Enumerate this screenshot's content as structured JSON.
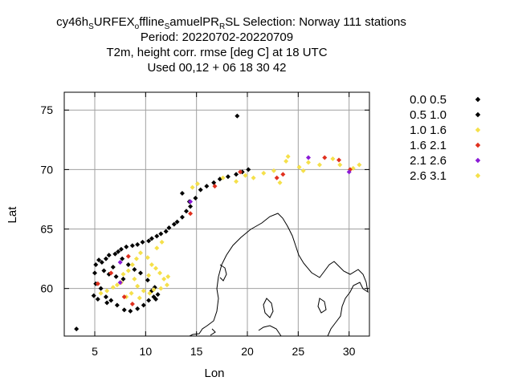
{
  "chart_data": {
    "type": "scatter",
    "title": {
      "line1": {
        "p1": "cy46h",
        "s1": "S",
        "p2": "URFEX",
        "s2": "o",
        "p3": "ffline",
        "s3": "S",
        "p4": "amuelPR",
        "s4": "R",
        "p5": "SL   Selection: Norway    111 stations"
      },
      "line2": "Period: 20220702-20220709",
      "line3": "T2m, height corr. rmse [deg C] at  18 UTC",
      "line4": "Used  00,12  + 06 18 30 42"
    },
    "xlabel": "Lon",
    "ylabel": "Lat",
    "xlim": [
      2,
      32
    ],
    "ylim": [
      56,
      76.5
    ],
    "xticks": [
      "5",
      "10",
      "15",
      "20",
      "25",
      "30"
    ],
    "yticks": [
      "60",
      "65",
      "70",
      "75"
    ],
    "grid": true,
    "legend": [
      {
        "label": "0.0 0.5",
        "color": "#000000"
      },
      {
        "label": "0.5 1.0",
        "color": "#000000"
      },
      {
        "label": "1.0 1.6",
        "color": "#f5e04a"
      },
      {
        "label": "1.6 2.1",
        "color": "#e0301e"
      },
      {
        "label": "2.1 2.6",
        "color": "#8a1ad6"
      },
      {
        "label": "2.6 3.1",
        "color": "#f5e04a"
      }
    ],
    "series": [
      {
        "name": "0.0-1.0",
        "color": "#000000",
        "points": [
          [
            3.2,
            56.6
          ],
          [
            4.9,
            59.4
          ],
          [
            5.3,
            59.1
          ],
          [
            5.1,
            60.4
          ],
          [
            5.0,
            61.3
          ],
          [
            5.1,
            62.0
          ],
          [
            5.4,
            62.4
          ],
          [
            5.7,
            62.2
          ],
          [
            6.1,
            62.5
          ],
          [
            6.4,
            62.8
          ],
          [
            7.0,
            62.9
          ],
          [
            7.3,
            63.1
          ],
          [
            7.6,
            63.3
          ],
          [
            8.1,
            63.5
          ],
          [
            8.7,
            63.6
          ],
          [
            9.2,
            63.7
          ],
          [
            9.7,
            63.9
          ],
          [
            10.3,
            64.0
          ],
          [
            10.6,
            64.2
          ],
          [
            11.1,
            64.4
          ],
          [
            11.5,
            64.6
          ],
          [
            12.0,
            64.8
          ],
          [
            12.3,
            65.1
          ],
          [
            12.8,
            65.4
          ],
          [
            13.1,
            65.6
          ],
          [
            13.6,
            66.0
          ],
          [
            14.0,
            66.5
          ],
          [
            14.4,
            66.9
          ],
          [
            14.3,
            67.3
          ],
          [
            14.9,
            67.6
          ],
          [
            13.6,
            68.0
          ],
          [
            15.4,
            68.3
          ],
          [
            16.0,
            68.6
          ],
          [
            16.7,
            68.9
          ],
          [
            17.3,
            69.2
          ],
          [
            18.1,
            69.4
          ],
          [
            18.9,
            69.6
          ],
          [
            19.5,
            69.8
          ],
          [
            20.1,
            70.0
          ],
          [
            19.0,
            74.5
          ],
          [
            5.9,
            61.5
          ],
          [
            6.4,
            61.2
          ],
          [
            7.1,
            61.0
          ],
          [
            7.8,
            60.8
          ],
          [
            6.1,
            59.3
          ],
          [
            6.6,
            59.0
          ],
          [
            7.2,
            58.6
          ],
          [
            7.9,
            58.2
          ],
          [
            8.5,
            58.1
          ],
          [
            9.2,
            58.3
          ],
          [
            9.8,
            58.6
          ],
          [
            10.3,
            59.0
          ],
          [
            10.8,
            59.3
          ],
          [
            11.2,
            59.5
          ],
          [
            11.0,
            59.1
          ],
          [
            10.6,
            59.8
          ],
          [
            10.9,
            60.1
          ],
          [
            10.2,
            60.7
          ],
          [
            9.5,
            61.3
          ],
          [
            8.9,
            61.6
          ],
          [
            8.3,
            62.0
          ],
          [
            7.7,
            62.5
          ],
          [
            6.8,
            61.8
          ],
          [
            5.6,
            60.0
          ],
          [
            6.2,
            58.8
          ]
        ]
      },
      {
        "name": "1.0-1.6 / 2.6-3.1",
        "color": "#f5e04a",
        "points": [
          [
            5.6,
            59.6
          ],
          [
            6.2,
            59.8
          ],
          [
            6.8,
            60.1
          ],
          [
            7.2,
            60.3
          ],
          [
            7.6,
            60.5
          ],
          [
            7.8,
            61.2
          ],
          [
            8.3,
            61.5
          ],
          [
            8.7,
            62.0
          ],
          [
            9.1,
            62.5
          ],
          [
            9.5,
            63.0
          ],
          [
            10.2,
            62.6
          ],
          [
            10.6,
            62.0
          ],
          [
            11.0,
            61.7
          ],
          [
            11.4,
            61.3
          ],
          [
            11.8,
            60.8
          ],
          [
            12.1,
            60.3
          ],
          [
            11.5,
            60.0
          ],
          [
            10.8,
            59.9
          ],
          [
            10.4,
            59.6
          ],
          [
            9.8,
            59.8
          ],
          [
            9.2,
            60.2
          ],
          [
            8.6,
            59.6
          ],
          [
            8.1,
            59.3
          ],
          [
            9.4,
            59.2
          ],
          [
            8.9,
            60.8
          ],
          [
            10.3,
            61.1
          ],
          [
            11.1,
            63.4
          ],
          [
            11.6,
            63.9
          ],
          [
            12.2,
            61.0
          ],
          [
            14.6,
            68.5
          ],
          [
            15.1,
            68.8
          ],
          [
            17.6,
            69.3
          ],
          [
            18.9,
            69.0
          ],
          [
            19.8,
            69.5
          ],
          [
            20.6,
            69.3
          ],
          [
            21.6,
            69.7
          ],
          [
            22.6,
            69.9
          ],
          [
            23.2,
            68.9
          ],
          [
            23.8,
            70.7
          ],
          [
            24.0,
            71.1
          ],
          [
            25.5,
            69.9
          ],
          [
            26.0,
            70.6
          ],
          [
            27.1,
            70.4
          ],
          [
            28.4,
            70.9
          ],
          [
            29.1,
            70.4
          ],
          [
            30.4,
            70.1
          ],
          [
            31.0,
            70.4
          ],
          [
            25.1,
            70.2
          ]
        ]
      },
      {
        "name": "1.6-2.1",
        "color": "#e0301e",
        "points": [
          [
            5.3,
            60.4
          ],
          [
            6.6,
            61.3
          ],
          [
            8.3,
            62.7
          ],
          [
            7.9,
            59.3
          ],
          [
            8.7,
            58.7
          ],
          [
            14.4,
            66.3
          ],
          [
            16.8,
            68.6
          ],
          [
            19.3,
            69.8
          ],
          [
            22.9,
            69.3
          ],
          [
            23.5,
            69.6
          ],
          [
            27.6,
            71.0
          ],
          [
            29.0,
            70.8
          ],
          [
            30.1,
            70.0
          ]
        ]
      },
      {
        "name": "2.1-2.6",
        "color": "#8a1ad6",
        "points": [
          [
            7.5,
            62.2
          ],
          [
            7.5,
            60.5
          ],
          [
            14.4,
            67.3
          ],
          [
            26.0,
            71.0
          ],
          [
            30.0,
            69.8
          ]
        ]
      }
    ]
  }
}
